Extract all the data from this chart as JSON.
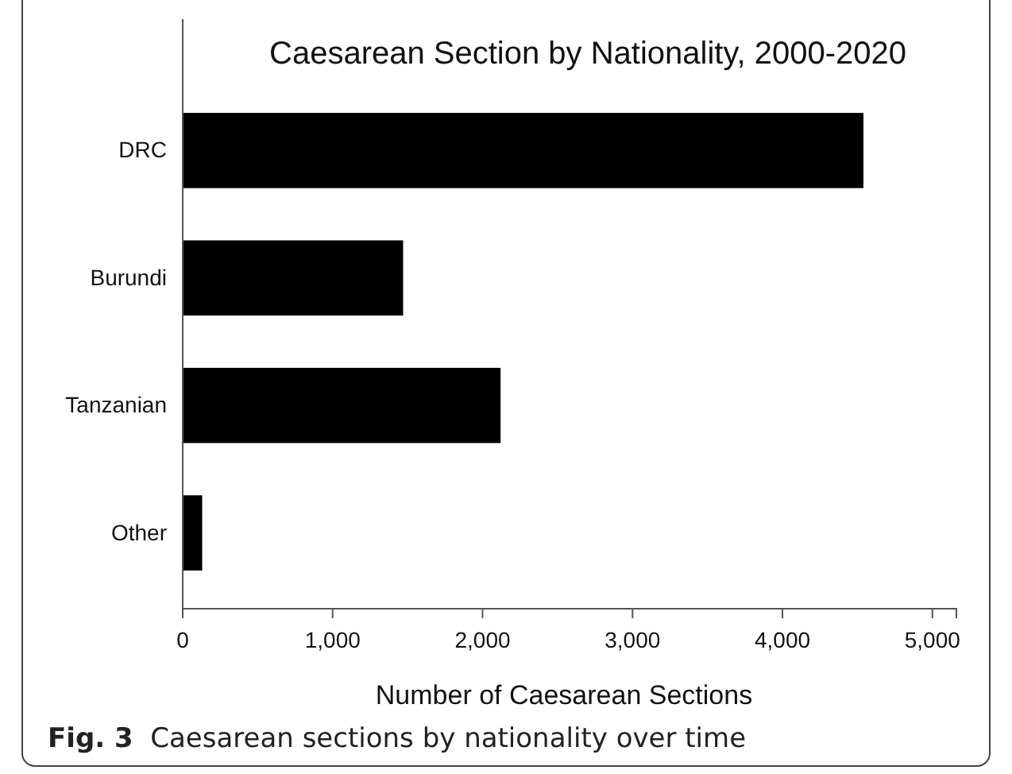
{
  "chart_data": {
    "type": "bar",
    "orientation": "horizontal",
    "title": "Caesarean Section by Nationality, 2000-2020",
    "xlabel": "Number of Caesarean Sections",
    "categories": [
      "DRC",
      "Burundi",
      "Tanzanian",
      "Other"
    ],
    "values": [
      4540,
      1470,
      2120,
      130
    ],
    "color": "#000000",
    "xlim": [
      0,
      5160
    ],
    "xticks": [
      {
        "value": 0,
        "label": "0"
      },
      {
        "value": 1000,
        "label": "1,000"
      },
      {
        "value": 2000,
        "label": "2,000"
      },
      {
        "value": 3000,
        "label": "3,000"
      },
      {
        "value": 4000,
        "label": "4,000"
      },
      {
        "value": 5000,
        "label": "5,000"
      }
    ],
    "grid": false,
    "annotations": [
      "Fig. 3  Caesarean sections by nationality over time"
    ]
  }
}
